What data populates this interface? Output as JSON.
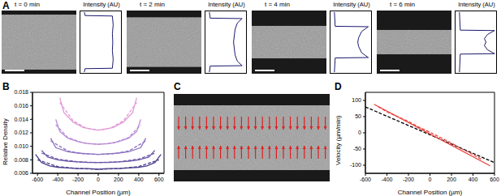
{
  "chart_data": [
    {
      "type": "line",
      "panel": "A",
      "title": "t = 0 min",
      "xlabel": "Intensity (AU)",
      "tick_labels": false,
      "xlim": [
        0,
        1
      ],
      "ylim": [
        -700,
        700
      ],
      "series": [
        {
          "color": "#1a1a6e",
          "line_style": "solid",
          "positions": [
            -700,
            -620,
            -610,
            -400,
            -200,
            0,
            200,
            400,
            610,
            620,
            700
          ],
          "intensity": [
            0.08,
            0.1,
            0.8,
            0.82,
            0.8,
            0.81,
            0.8,
            0.82,
            0.8,
            0.1,
            0.08
          ]
        }
      ]
    },
    {
      "type": "line",
      "title": "t = 2 min",
      "xlabel": "Intensity (AU)",
      "tick_labels": false,
      "xlim": [
        0,
        1
      ],
      "ylim": [
        -700,
        700
      ],
      "series": [
        {
          "color": "#1a1a6e",
          "line_style": "solid",
          "positions": [
            -700,
            -560,
            -550,
            -450,
            -300,
            -150,
            0,
            150,
            300,
            450,
            550,
            560,
            700
          ],
          "intensity": [
            0.08,
            0.1,
            0.92,
            0.8,
            0.74,
            0.72,
            0.7,
            0.72,
            0.74,
            0.8,
            0.92,
            0.1,
            0.08
          ]
        }
      ]
    },
    {
      "type": "line",
      "title": "t = 4 min",
      "xlabel": "Intensity (AU)",
      "tick_labels": false,
      "xlim": [
        0,
        1
      ],
      "ylim": [
        -700,
        700
      ],
      "series": [
        {
          "color": "#1a1a6e",
          "line_style": "solid",
          "positions": [
            -700,
            -370,
            -360,
            -250,
            -100,
            0,
            100,
            250,
            360,
            370,
            700
          ],
          "intensity": [
            0.08,
            0.1,
            0.95,
            0.78,
            0.7,
            0.68,
            0.7,
            0.78,
            0.95,
            0.1,
            0.08
          ]
        }
      ]
    },
    {
      "type": "line",
      "title": "t = 6 min",
      "xlabel": "Intensity (AU)",
      "tick_labels": false,
      "xlim": [
        0,
        1
      ],
      "ylim": [
        -700,
        700
      ],
      "series": [
        {
          "color": "#1a1a6e",
          "line_style": "solid",
          "positions": [
            -700,
            -280,
            -270,
            -180,
            -80,
            0,
            80,
            180,
            270,
            280,
            700
          ],
          "intensity": [
            0.08,
            0.1,
            0.98,
            0.8,
            0.72,
            0.76,
            0.72,
            0.8,
            0.98,
            0.1,
            0.08
          ]
        }
      ]
    },
    {
      "type": "line",
      "panel": "B",
      "xlabel": "Channel Position (µm)",
      "ylabel": "Relative Density",
      "xlim": [
        -650,
        650
      ],
      "ylim": [
        0.006,
        0.018
      ],
      "xticks": [
        -600,
        -400,
        -200,
        0,
        200,
        400,
        600
      ],
      "yticks": [
        0.006,
        0.008,
        {
          "value": 0.01,
          "label": "0.010"
        },
        0.012,
        0.014,
        0.016,
        0.018
      ],
      "series": [
        {
          "color": "#4b3f8c",
          "line_style": "solid",
          "x": [
            -620,
            -560,
            -480,
            -400,
            -300,
            -200,
            -100,
            0,
            100,
            200,
            300,
            400,
            480,
            560,
            620
          ],
          "values": [
            0.0088,
            0.0076,
            0.0071,
            0.0069,
            0.0068,
            0.0067,
            0.0067,
            0.0066,
            0.0067,
            0.0067,
            0.0068,
            0.0069,
            0.0071,
            0.0076,
            0.0088
          ]
        },
        {
          "color": "#4b3f8c",
          "line_style": "dashed",
          "x": [
            -600,
            -400,
            -200,
            0,
            200,
            400,
            600
          ],
          "values": [
            0.008,
            0.007,
            0.0067,
            0.0066,
            0.0067,
            0.007,
            0.008
          ]
        },
        {
          "color": "#6b57a8",
          "line_style": "solid",
          "x": [
            -560,
            -500,
            -400,
            -300,
            -200,
            -100,
            0,
            100,
            200,
            300,
            400,
            500,
            560
          ],
          "values": [
            0.0094,
            0.0084,
            0.008,
            0.0078,
            0.0077,
            0.0076,
            0.0076,
            0.0076,
            0.0077,
            0.0078,
            0.008,
            0.0084,
            0.0094
          ]
        },
        {
          "color": "#6b57a8",
          "line_style": "dashed",
          "x": [
            -560,
            -400,
            -200,
            0,
            200,
            400,
            560
          ],
          "values": [
            0.009,
            0.0081,
            0.0077,
            0.0076,
            0.0077,
            0.0081,
            0.009
          ]
        },
        {
          "color": "#8f73c2",
          "line_style": "solid",
          "x": [
            -470,
            -420,
            -300,
            -200,
            -100,
            0,
            100,
            200,
            300,
            420,
            470
          ],
          "values": [
            0.0112,
            0.0098,
            0.0092,
            0.009,
            0.0089,
            0.0088,
            0.0089,
            0.009,
            0.0092,
            0.0098,
            0.0112
          ]
        },
        {
          "color": "#8f73c2",
          "line_style": "dashed",
          "x": [
            -470,
            -300,
            -150,
            0,
            150,
            300,
            470
          ],
          "values": [
            0.0108,
            0.0093,
            0.0089,
            0.0088,
            0.0089,
            0.0093,
            0.0108
          ]
        },
        {
          "color": "#b98bd4",
          "line_style": "solid",
          "x": [
            -420,
            -380,
            -300,
            -200,
            -100,
            0,
            100,
            200,
            300,
            380,
            420
          ],
          "values": [
            0.014,
            0.0122,
            0.0112,
            0.0107,
            0.0104,
            0.0103,
            0.0104,
            0.0107,
            0.0112,
            0.0122,
            0.014
          ]
        },
        {
          "color": "#b98bd4",
          "line_style": "dashed",
          "x": [
            -420,
            -300,
            -150,
            0,
            150,
            300,
            420
          ],
          "values": [
            0.0132,
            0.0113,
            0.0105,
            0.0103,
            0.0105,
            0.0113,
            0.0132
          ]
        },
        {
          "color": "#e39bd9",
          "line_style": "solid",
          "x": [
            -380,
            -340,
            -250,
            -150,
            -50,
            0,
            50,
            150,
            250,
            340,
            380
          ],
          "values": [
            0.0172,
            0.015,
            0.0136,
            0.0128,
            0.0125,
            0.0124,
            0.0125,
            0.0128,
            0.0136,
            0.015,
            0.0172
          ]
        },
        {
          "color": "#e39bd9",
          "line_style": "dashed",
          "x": [
            -380,
            -250,
            -120,
            0,
            120,
            250,
            380
          ],
          "values": [
            0.0165,
            0.0138,
            0.0127,
            0.0124,
            0.0127,
            0.0138,
            0.0165
          ]
        }
      ]
    },
    {
      "type": "image",
      "panel": "C"
    },
    {
      "type": "line",
      "panel": "D",
      "xlabel": "Channel Position (µm)",
      "ylabel": "Velocity (µm/min)",
      "xlim": [
        -600,
        600
      ],
      "ylim": [
        -125,
        125
      ],
      "xticks": [
        -600,
        -400,
        -200,
        0,
        200,
        400,
        600
      ],
      "yticks": [
        -100,
        -50,
        0,
        50,
        100
      ],
      "series": [
        {
          "color": "#000000",
          "line_style": "dashed",
          "x": [
            -600,
            600
          ],
          "values": [
            80,
            -92
          ]
        },
        {
          "color": "#e8413c",
          "line_style": "solid",
          "x": [
            -520,
            560
          ],
          "values": [
            88,
            -102
          ]
        },
        {
          "color": "#e8413c",
          "line_style": "dashed",
          "x": [
            -480,
            -400,
            -300,
            -200,
            -100,
            0,
            100,
            200,
            300,
            400,
            480
          ],
          "values": [
            80,
            65,
            50,
            35,
            17,
            2,
            -15,
            -32,
            -50,
            -67,
            -82
          ]
        }
      ]
    }
  ]
}
